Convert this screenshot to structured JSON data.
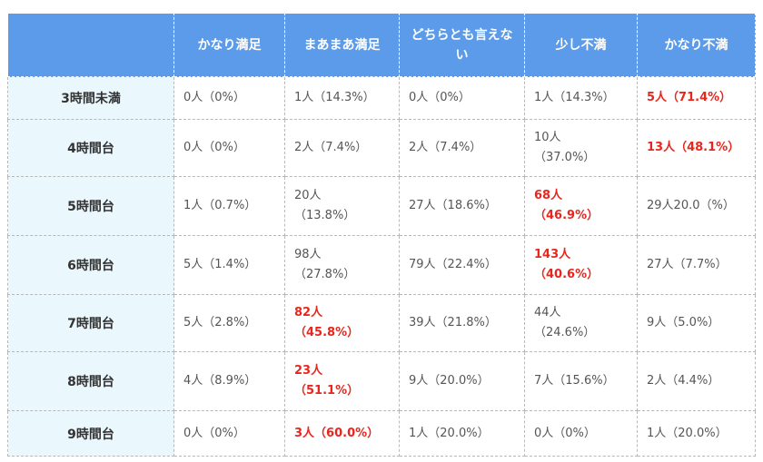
{
  "headers": [
    "",
    "かなり満足",
    "まあまあ満足",
    "どちらとも言えない",
    "少し不満",
    "かなり不満"
  ],
  "rows": [
    {
      "label": "3時間未満",
      "cells": [
        {
          "count": "0人",
          "pct": "（0%）",
          "highlight": false,
          "wrap": false
        },
        {
          "count": "1人",
          "pct": "（14.3%）",
          "highlight": false,
          "wrap": false
        },
        {
          "count": "0人",
          "pct": "（0%）",
          "highlight": false,
          "wrap": false
        },
        {
          "count": "1人",
          "pct": "（14.3%）",
          "highlight": false,
          "wrap": false
        },
        {
          "count": "5人",
          "pct": "（71.4%）",
          "highlight": true,
          "wrap": false
        }
      ]
    },
    {
      "label": "4時間台",
      "cells": [
        {
          "count": "0人",
          "pct": "（0%）",
          "highlight": false,
          "wrap": false
        },
        {
          "count": "2人",
          "pct": "（7.4%）",
          "highlight": false,
          "wrap": false
        },
        {
          "count": "2人",
          "pct": "（7.4%）",
          "highlight": false,
          "wrap": false
        },
        {
          "count": "10人",
          "pct": "（37.0%）",
          "highlight": false,
          "wrap": true
        },
        {
          "count": "13人",
          "pct": "（48.1%）",
          "highlight": true,
          "wrap": false
        }
      ]
    },
    {
      "label": "5時間台",
      "cells": [
        {
          "count": "1人",
          "pct": "（0.7%）",
          "highlight": false,
          "wrap": false
        },
        {
          "count": "20人",
          "pct": "（13.8%）",
          "highlight": false,
          "wrap": true
        },
        {
          "count": "27人",
          "pct": "（18.6%）",
          "highlight": false,
          "wrap": false
        },
        {
          "count": "68人",
          "pct": "（46.9%）",
          "highlight": true,
          "wrap": true
        },
        {
          "count": "29人",
          "pct": "20.0（%）",
          "highlight": false,
          "wrap": false
        }
      ]
    },
    {
      "label": "6時間台",
      "cells": [
        {
          "count": "5人",
          "pct": "（1.4%）",
          "highlight": false,
          "wrap": false
        },
        {
          "count": "98人",
          "pct": "（27.8%）",
          "highlight": false,
          "wrap": true
        },
        {
          "count": "79人",
          "pct": "（22.4%）",
          "highlight": false,
          "wrap": false
        },
        {
          "count": "143人",
          "pct": "（40.6%）",
          "highlight": true,
          "wrap": true
        },
        {
          "count": "27人",
          "pct": "（7.7%）",
          "highlight": false,
          "wrap": false
        }
      ]
    },
    {
      "label": "7時間台",
      "cells": [
        {
          "count": "5人",
          "pct": "（2.8%）",
          "highlight": false,
          "wrap": false
        },
        {
          "count": "82人",
          "pct": "（45.8%）",
          "highlight": true,
          "wrap": true
        },
        {
          "count": "39人",
          "pct": "（21.8%）",
          "highlight": false,
          "wrap": false
        },
        {
          "count": "44人",
          "pct": "（24.6%）",
          "highlight": false,
          "wrap": true
        },
        {
          "count": "9人",
          "pct": "（5.0%）",
          "highlight": false,
          "wrap": false
        }
      ]
    },
    {
      "label": "8時間台",
      "cells": [
        {
          "count": "4人",
          "pct": "（8.9%）",
          "highlight": false,
          "wrap": false
        },
        {
          "count": "23人",
          "pct": "（51.1%）",
          "highlight": true,
          "wrap": true
        },
        {
          "count": "9人",
          "pct": "（20.0%）",
          "highlight": false,
          "wrap": false
        },
        {
          "count": "7人",
          "pct": "（15.6%）",
          "highlight": false,
          "wrap": false
        },
        {
          "count": "2人",
          "pct": "（4.4%）",
          "highlight": false,
          "wrap": false
        }
      ]
    },
    {
      "label": "9時間台",
      "cells": [
        {
          "count": "0人",
          "pct": "（0%）",
          "highlight": false,
          "wrap": false
        },
        {
          "count": "3人",
          "pct": "（60.0%）",
          "highlight": true,
          "wrap": false
        },
        {
          "count": "1人",
          "pct": "（20.0%）",
          "highlight": false,
          "wrap": false
        },
        {
          "count": "0人",
          "pct": "（0%）",
          "highlight": false,
          "wrap": false
        },
        {
          "count": "1人",
          "pct": "（20.0%）",
          "highlight": false,
          "wrap": false
        }
      ]
    }
  ],
  "colors": {
    "header_bg": "#5b9bea",
    "row_header_bg": "#eaf7fd",
    "highlight_text": "#e8261d",
    "body_text": "#555555"
  }
}
